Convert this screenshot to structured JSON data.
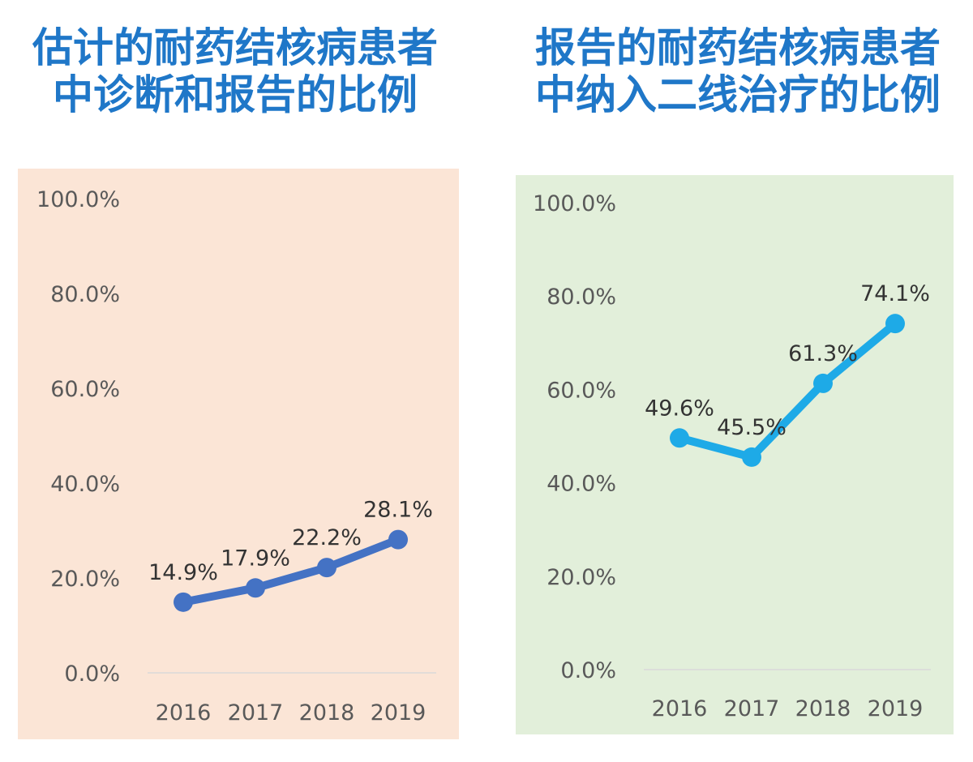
{
  "chart_data": [
    {
      "type": "line",
      "title": [
        "估计的耐药结核病患者",
        "中诊断和报告的比例"
      ],
      "categories": [
        "2016",
        "2017",
        "2018",
        "2019"
      ],
      "values": [
        14.9,
        17.9,
        22.2,
        28.1
      ],
      "data_labels": [
        "14.9%",
        "17.9%",
        "22.2%",
        "28.1%"
      ],
      "ylim": [
        0,
        100
      ],
      "yticks": [
        "0.0%",
        "20.0%",
        "40.0%",
        "60.0%",
        "80.0%",
        "100.0%"
      ],
      "grid": false,
      "line_color": "#4472C4",
      "background_color": "#FBE5D6"
    },
    {
      "type": "line",
      "title": [
        "报告的耐药结核病患者",
        "中纳入二线治疗的比例"
      ],
      "categories": [
        "2016",
        "2017",
        "2018",
        "2019"
      ],
      "values": [
        49.6,
        45.5,
        61.3,
        74.1
      ],
      "data_labels": [
        "49.6%",
        "45.5%",
        "61.3%",
        "74.1%"
      ],
      "ylim": [
        0,
        100
      ],
      "yticks": [
        "0.0%",
        "20.0%",
        "40.0%",
        "60.0%",
        "80.0%",
        "100.0%"
      ],
      "grid": false,
      "line_color": "#1EAAE7",
      "background_color": "#E2EFDA"
    }
  ]
}
